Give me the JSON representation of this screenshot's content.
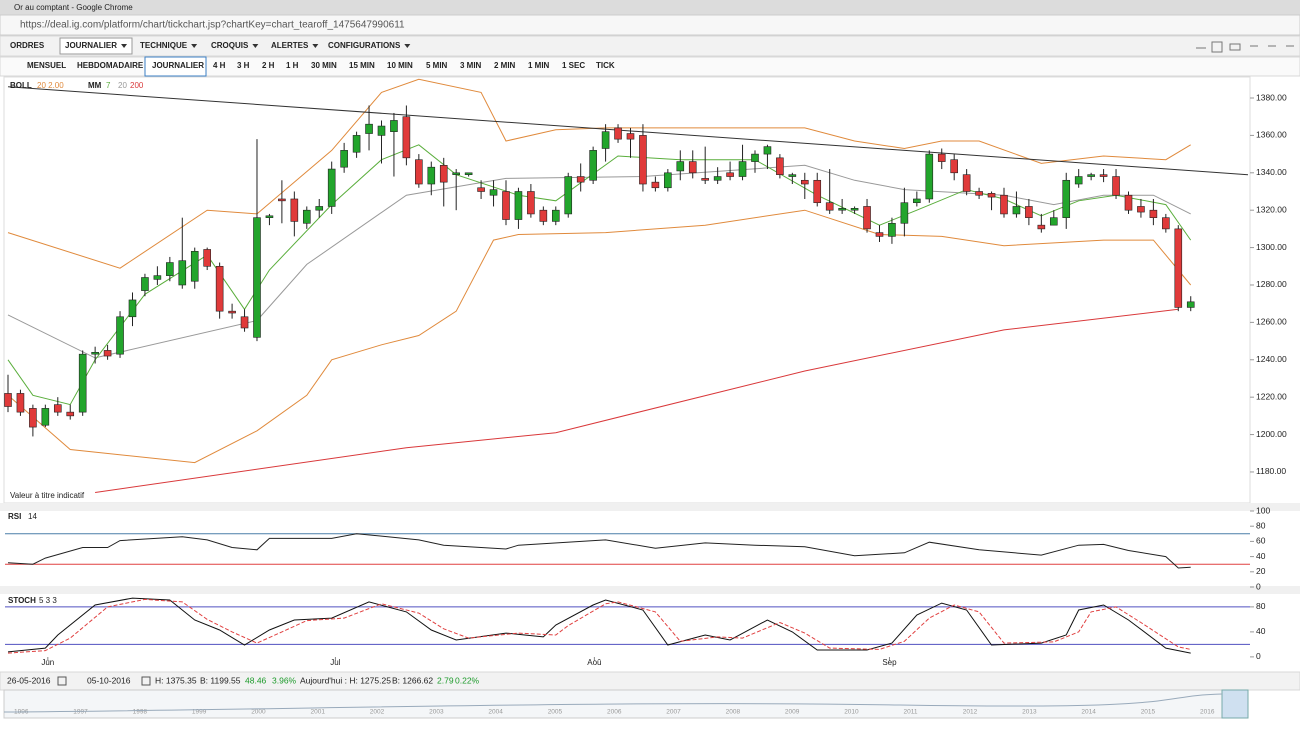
{
  "window": {
    "title": "Or au comptant - Google Chrome",
    "url": "https://deal.ig.com/platform/chart/tickchart.jsp?chartKey=chart_tearoff_1475647990611"
  },
  "toolbar": [
    "ORDRES",
    "JOURNALIER",
    "TECHNIQUE",
    "CROQUIS",
    "ALERTES",
    "CONFIGURATIONS"
  ],
  "timeframes": [
    "MENSUEL",
    "HEBDOMADAIRE",
    "JOURNALIER",
    "4 H",
    "3 H",
    "2 H",
    "1 H",
    "30 MIN",
    "15 MIN",
    "10 MIN",
    "5 MIN",
    "3 MIN",
    "2 MIN",
    "1 MIN",
    "1 SEC",
    "TICK"
  ],
  "chart_data": [
    {
      "type": "candlestick",
      "boll_label": "BOLL",
      "boll_params": "20 2.00",
      "mm_label": "MM",
      "mm_params": [
        "7",
        "20",
        "200"
      ],
      "note": "Valeur à titre indicatif",
      "up_color": "#22a52c",
      "down_color": "#e03a3a",
      "xlim": [
        -0.24,
        99.76
      ],
      "ylim": [
        1163.4,
        1390.7
      ],
      "yticks": [
        {
          "value": 1180,
          "label": "1180.00"
        },
        {
          "value": 1200,
          "label": "1200.00"
        },
        {
          "value": 1220,
          "label": "1220.00"
        },
        {
          "value": 1240,
          "label": "1240.00"
        },
        {
          "value": 1260,
          "label": "1260.00"
        },
        {
          "value": 1280,
          "label": "1280.00"
        },
        {
          "value": 1300,
          "label": "1300.00"
        },
        {
          "value": 1320,
          "label": "1320.00"
        },
        {
          "value": 1340,
          "label": "1340.00"
        },
        {
          "value": 1360,
          "label": "1360.00"
        },
        {
          "value": 1380,
          "label": "1380.00"
        }
      ],
      "candles": [
        [
          1222,
          1232,
          1212,
          1215
        ],
        [
          1222,
          1224,
          1210,
          1212
        ],
        [
          1214,
          1216,
          1199,
          1204
        ],
        [
          1205,
          1216,
          1204,
          1214
        ],
        [
          1216,
          1220,
          1210,
          1212
        ],
        [
          1212,
          1216,
          1208,
          1210
        ],
        [
          1212,
          1245,
          1210,
          1243
        ],
        [
          1243,
          1247,
          1238,
          1244
        ],
        [
          1245,
          1248,
          1240,
          1242
        ],
        [
          1243,
          1266,
          1241,
          1263
        ],
        [
          1263,
          1276,
          1258,
          1272
        ],
        [
          1277,
          1286,
          1274,
          1284
        ],
        [
          1283,
          1290,
          1280,
          1285
        ],
        [
          1285,
          1295,
          1282,
          1292
        ],
        [
          1280,
          1316,
          1278,
          1293
        ],
        [
          1282,
          1300,
          1278,
          1298
        ],
        [
          1299,
          1300,
          1288,
          1290
        ],
        [
          1290,
          1292,
          1262,
          1266
        ],
        [
          1266,
          1270,
          1262,
          1265
        ],
        [
          1263,
          1267,
          1255,
          1257
        ],
        [
          1252,
          1358,
          1250,
          1316
        ],
        [
          1316,
          1318,
          1312,
          1317
        ],
        [
          1326,
          1336,
          1313,
          1325
        ],
        [
          1326,
          1330,
          1306,
          1314
        ],
        [
          1313,
          1322,
          1310,
          1320
        ],
        [
          1320,
          1326,
          1316,
          1322
        ],
        [
          1322,
          1346,
          1318,
          1342
        ],
        [
          1343,
          1356,
          1340,
          1352
        ],
        [
          1351,
          1362,
          1348,
          1360
        ],
        [
          1361,
          1376,
          1352,
          1366
        ],
        [
          1360,
          1368,
          1345,
          1365
        ],
        [
          1362,
          1372,
          1338,
          1368
        ],
        [
          1370,
          1376,
          1344,
          1348
        ],
        [
          1347,
          1350,
          1332,
          1334
        ],
        [
          1334,
          1346,
          1328,
          1343
        ],
        [
          1344,
          1348,
          1322,
          1335
        ],
        [
          1339,
          1342,
          1320,
          1340
        ],
        [
          1339,
          1340,
          1338,
          1340
        ],
        [
          1332,
          1336,
          1326,
          1330
        ],
        [
          1328,
          1336,
          1322,
          1331
        ],
        [
          1330,
          1336,
          1312,
          1315
        ],
        [
          1315,
          1332,
          1310,
          1330
        ],
        [
          1330,
          1334,
          1316,
          1318
        ],
        [
          1320,
          1322,
          1312,
          1314
        ],
        [
          1314,
          1322,
          1312,
          1320
        ],
        [
          1318,
          1340,
          1316,
          1338
        ],
        [
          1338,
          1345,
          1330,
          1335
        ],
        [
          1336,
          1354,
          1334,
          1352
        ],
        [
          1353,
          1366,
          1346,
          1362
        ],
        [
          1364,
          1366,
          1356,
          1358
        ],
        [
          1361,
          1364,
          1348,
          1358
        ],
        [
          1360,
          1366,
          1330,
          1334
        ],
        [
          1335,
          1338,
          1330,
          1332
        ],
        [
          1332,
          1342,
          1330,
          1340
        ],
        [
          1341,
          1352,
          1336,
          1346
        ],
        [
          1346,
          1352,
          1337,
          1340
        ],
        [
          1337,
          1354,
          1334,
          1336
        ],
        [
          1336,
          1343,
          1334,
          1338
        ],
        [
          1340,
          1346,
          1336,
          1338
        ],
        [
          1338,
          1355,
          1336,
          1346
        ],
        [
          1346,
          1352,
          1340,
          1350
        ],
        [
          1350,
          1355,
          1342,
          1354
        ],
        [
          1348,
          1350,
          1337,
          1339
        ],
        [
          1338,
          1340,
          1334,
          1339
        ],
        [
          1336,
          1340,
          1326,
          1334
        ],
        [
          1336,
          1340,
          1322,
          1324
        ],
        [
          1324,
          1342,
          1318,
          1320
        ],
        [
          1320,
          1326,
          1318,
          1321
        ],
        [
          1320,
          1322,
          1318,
          1321
        ],
        [
          1322,
          1326,
          1308,
          1310
        ],
        [
          1308,
          1312,
          1303,
          1306
        ],
        [
          1306,
          1316,
          1302,
          1313
        ],
        [
          1313,
          1332,
          1306,
          1324
        ],
        [
          1324,
          1330,
          1322,
          1326
        ],
        [
          1326,
          1352,
          1324,
          1350
        ],
        [
          1350,
          1353,
          1342,
          1346
        ],
        [
          1347,
          1350,
          1336,
          1340
        ],
        [
          1339,
          1342,
          1328,
          1330
        ],
        [
          1330,
          1332,
          1326,
          1328
        ],
        [
          1329,
          1330,
          1320,
          1327
        ],
        [
          1328,
          1332,
          1316,
          1318
        ],
        [
          1318,
          1330,
          1316,
          1322
        ],
        [
          1322,
          1326,
          1312,
          1316
        ],
        [
          1312,
          1318,
          1308,
          1310
        ],
        [
          1312,
          1320,
          1312,
          1316
        ],
        [
          1316,
          1340,
          1310,
          1336
        ],
        [
          1334,
          1342,
          1332,
          1338
        ],
        [
          1338,
          1340,
          1336,
          1339
        ],
        [
          1339,
          1342,
          1335,
          1338
        ],
        [
          1338,
          1342,
          1326,
          1328
        ],
        [
          1328,
          1330,
          1318,
          1320
        ],
        [
          1322,
          1326,
          1316,
          1319
        ],
        [
          1320,
          1326,
          1312,
          1316
        ],
        [
          1316,
          1318,
          1308,
          1310
        ],
        [
          1310,
          1312,
          1266,
          1268
        ],
        [
          1268,
          1274,
          1266,
          1271
        ]
      ],
      "overlays": [
        {
          "color": "#e08a3c",
          "x": [
            0,
            9,
            16,
            20,
            26,
            30,
            33,
            38,
            40,
            44,
            48,
            56,
            64,
            68,
            72,
            75,
            78,
            83,
            88,
            93,
            95
          ],
          "values": [
            1308,
            1289,
            1320,
            1318,
            1352,
            1383,
            1390,
            1383,
            1357,
            1363,
            1364,
            1364,
            1364,
            1357,
            1353,
            1357,
            1357,
            1345,
            1349,
            1347,
            1355
          ]
        },
        {
          "color": "#e08a3c",
          "x": [
            0,
            5,
            15,
            20,
            24,
            26,
            30,
            33,
            36,
            39,
            41,
            48,
            56,
            64,
            70,
            75,
            80,
            88,
            92,
            95
          ],
          "values": [
            1221,
            1192,
            1185,
            1202,
            1221,
            1240,
            1248,
            1253,
            1266,
            1304,
            1307,
            1308,
            1312,
            1320,
            1307,
            1306,
            1301,
            1304,
            1304,
            1280
          ]
        },
        {
          "color": "#999999",
          "x": [
            0,
            7,
            20,
            24,
            32,
            40,
            51,
            64,
            68,
            72,
            80,
            84,
            88,
            92,
            95
          ],
          "values": [
            1264,
            1241,
            1261,
            1291,
            1328,
            1337,
            1338,
            1344,
            1336,
            1331,
            1328,
            1323,
            1328,
            1328,
            1318
          ]
        },
        {
          "color": "#5aae3c",
          "x": [
            0,
            2,
            5,
            7,
            11,
            16,
            19,
            21,
            26,
            30,
            33,
            36,
            41,
            44,
            49,
            54,
            60,
            65,
            70,
            73,
            77,
            80,
            83,
            86,
            89,
            93,
            95
          ],
          "values": [
            1240,
            1221,
            1216,
            1240,
            1275,
            1296,
            1267,
            1288,
            1323,
            1347,
            1355,
            1339,
            1328,
            1325,
            1349,
            1347,
            1347,
            1328,
            1312,
            1320,
            1331,
            1326,
            1317,
            1325,
            1328,
            1323,
            1304
          ]
        },
        {
          "color": "#d9383a",
          "x": [
            7,
            32,
            44,
            64,
            80,
            94
          ],
          "values": [
            1169,
            1193,
            1201,
            1234,
            1256,
            1267
          ]
        },
        {
          "color": "#333333",
          "x": [
            0,
            99.6
          ],
          "values": [
            1386,
            1339
          ]
        }
      ],
      "months": [
        "Jun",
        "Jul",
        "Aoû",
        "Sep"
      ],
      "month_x": [
        3.2,
        26.3,
        47.1,
        70.8
      ]
    },
    {
      "type": "line",
      "label": "RSI",
      "params": "14",
      "xlim": [
        -0.24,
        99.76
      ],
      "ylim": [
        0,
        100
      ],
      "yticks": [
        0,
        20,
        40,
        60,
        80,
        100
      ],
      "levels": [
        70,
        30
      ],
      "level_colors": [
        "#4a7fa8",
        "#e04040"
      ],
      "series": [
        {
          "color": "#222222",
          "x": [
            0,
            2,
            3,
            6,
            8,
            9,
            14,
            16,
            18,
            20,
            21,
            26,
            28,
            30,
            33,
            35,
            40,
            41,
            48,
            52,
            56,
            60,
            64,
            68,
            72,
            74,
            78,
            83,
            86,
            88,
            90,
            93,
            94,
            95
          ],
          "values": [
            32,
            30,
            38,
            52,
            52,
            61,
            66,
            62,
            52,
            49,
            64,
            64,
            70,
            67,
            62,
            55,
            50,
            55,
            62,
            51,
            58,
            55,
            53,
            41,
            45,
            59,
            49,
            42,
            55,
            56,
            48,
            40,
            25,
            26
          ]
        }
      ]
    },
    {
      "type": "line",
      "label": "STOCH",
      "params": "5 3 3",
      "xlim": [
        -0.24,
        99.76
      ],
      "ylim": [
        -5,
        99
      ],
      "yticks": [
        0,
        40,
        80
      ],
      "levels": [
        80,
        20
      ],
      "level_colors": [
        "#5050c0",
        "#5050c0"
      ],
      "series": [
        {
          "color": "#111111",
          "x": [
            0,
            3,
            4,
            7,
            10,
            13,
            15,
            17,
            19,
            21,
            23,
            26,
            29,
            32,
            34,
            36,
            40,
            43,
            44,
            47,
            48,
            51,
            53,
            56,
            58,
            61,
            63,
            65,
            69,
            71,
            73,
            75,
            77,
            79,
            83,
            85,
            86,
            88,
            90,
            93,
            95
          ],
          "values": [
            8,
            14,
            35,
            83,
            94,
            91,
            59,
            43,
            19,
            43,
            59,
            62,
            88,
            72,
            43,
            27,
            38,
            32,
            51,
            83,
            91,
            75,
            19,
            35,
            27,
            59,
            40,
            11,
            11,
            22,
            67,
            86,
            75,
            19,
            22,
            35,
            75,
            83,
            59,
            14,
            6
          ]
        },
        {
          "color": "#e04040",
          "dash": true,
          "x": [
            0,
            3,
            5,
            8,
            11,
            14,
            16,
            18,
            20,
            22,
            24,
            27,
            30,
            33,
            35,
            37,
            41,
            44,
            45,
            48,
            49,
            52,
            54,
            57,
            59,
            62,
            64,
            66,
            70,
            72,
            74,
            76,
            78,
            80,
            84,
            86,
            87,
            89,
            91,
            94,
            95
          ],
          "values": [
            6,
            10,
            30,
            80,
            92,
            88,
            60,
            40,
            22,
            40,
            58,
            62,
            85,
            70,
            45,
            30,
            38,
            35,
            50,
            85,
            88,
            72,
            25,
            32,
            30,
            55,
            38,
            14,
            12,
            25,
            62,
            83,
            72,
            22,
            24,
            40,
            72,
            80,
            55,
            16,
            12
          ]
        }
      ]
    }
  ],
  "status": {
    "from": "26-05-2016",
    "to": "05-10-2016",
    "high": "H: 1375.35",
    "low": "B: 1199.55",
    "change": "48.46",
    "change_pct": "3.96%",
    "today": "Aujourd'hui : H: 1275.25",
    "today_low": "B: 1266.62",
    "today_change": "2.79",
    "today_pct": "0.22%"
  },
  "navigator": [
    "1996",
    "1997",
    "1998",
    "1999",
    "2000",
    "2001",
    "2002",
    "2003",
    "2004",
    "2005",
    "2006",
    "2007",
    "2008",
    "2009",
    "2010",
    "2011",
    "2012",
    "2013",
    "2014",
    "2015",
    "2016"
  ]
}
